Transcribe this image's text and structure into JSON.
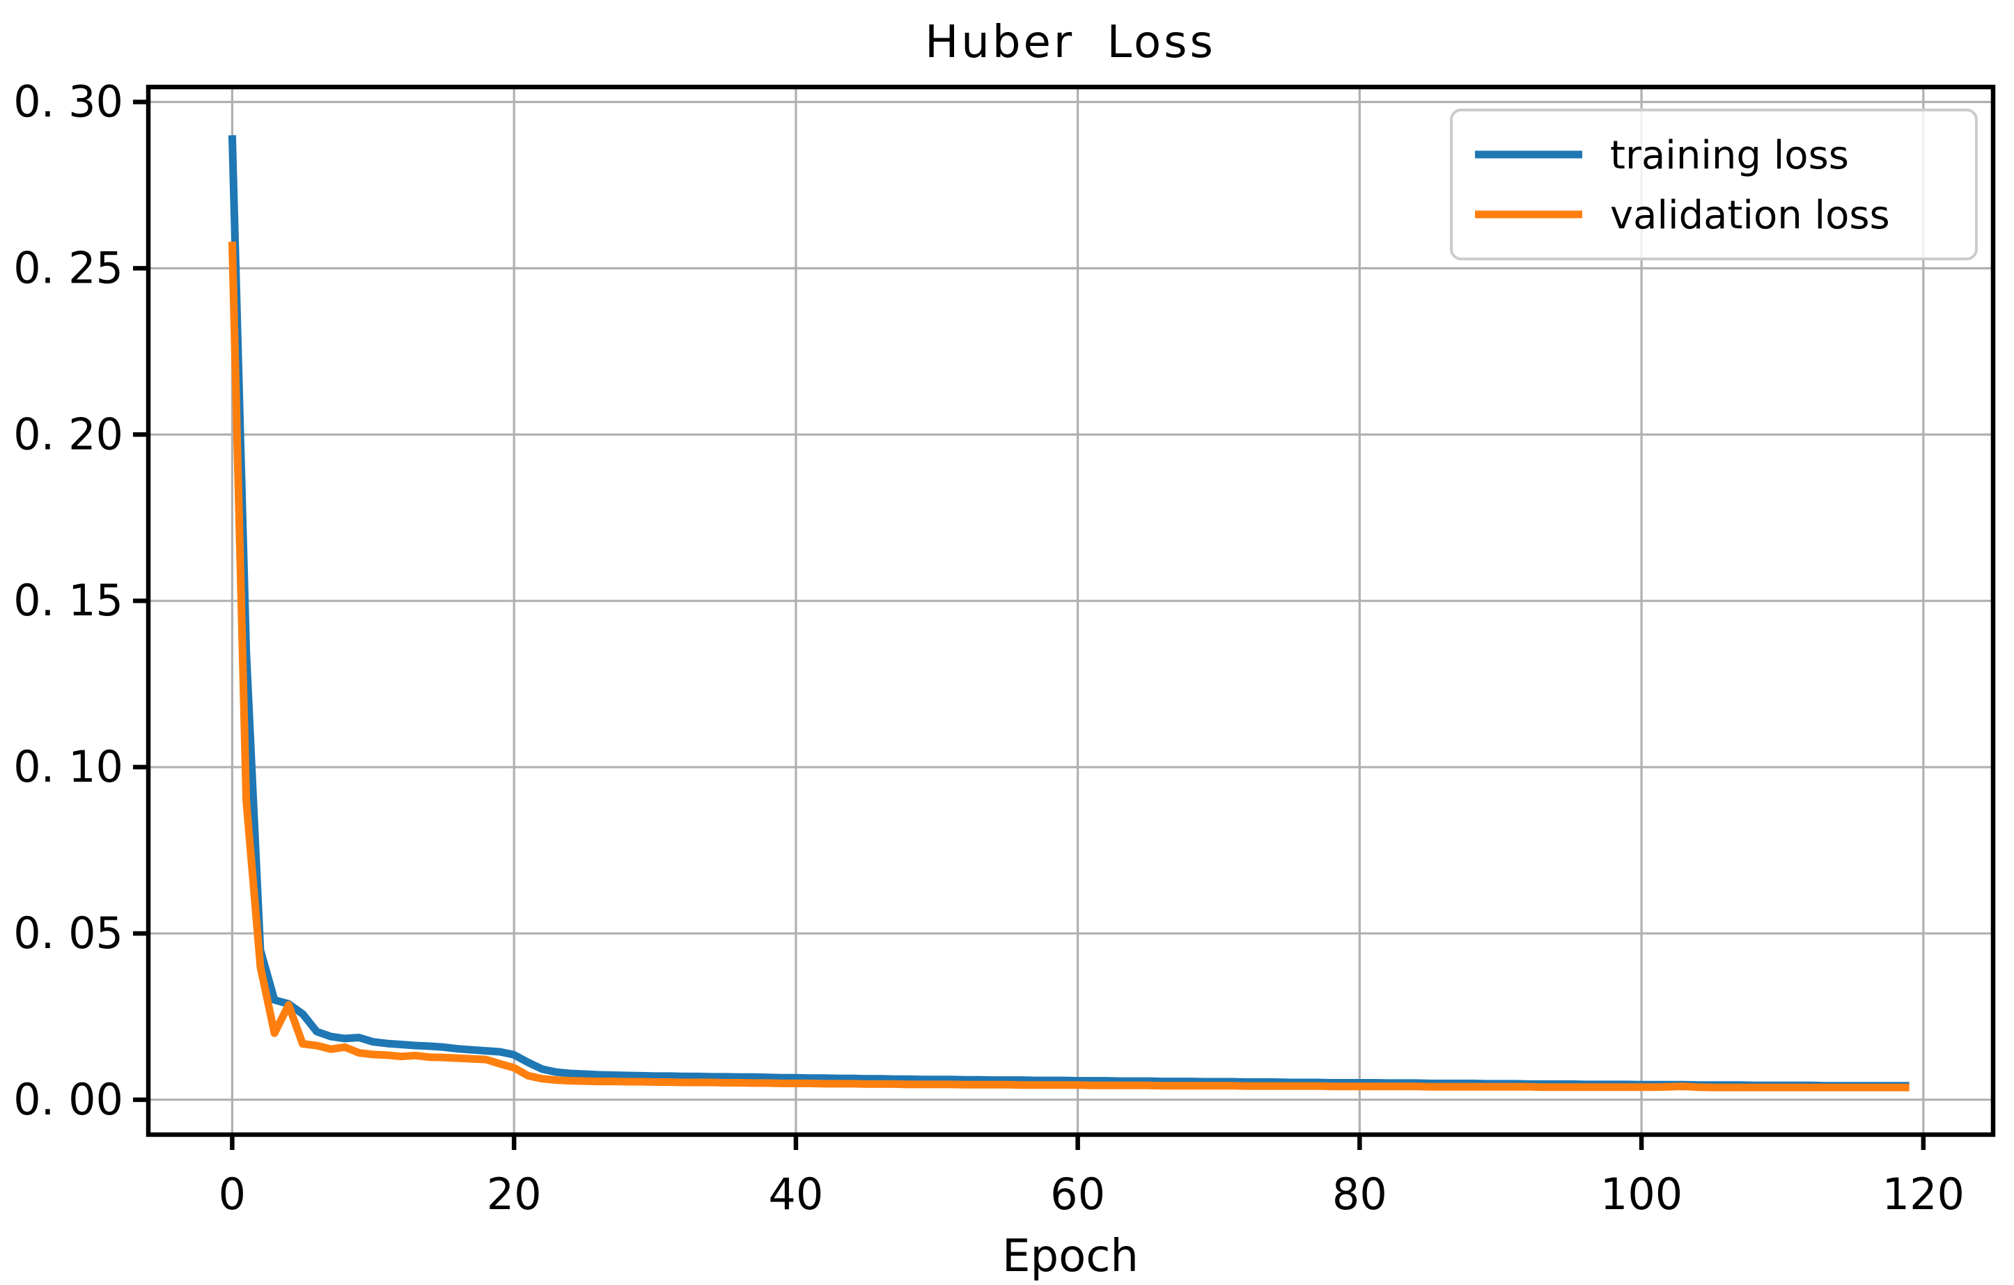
{
  "figure": {
    "title": "Huber Loss",
    "xlabel": "Epoch"
  },
  "colors": {
    "training": "#1f77b4",
    "validation": "#ff7f0e",
    "grid": "#b0b0b0",
    "spine": "#000000",
    "legend_border": "#cccccc",
    "background": "#ffffff"
  },
  "legend": {
    "entries": [
      {
        "label": "training loss",
        "color": "#1f77b4"
      },
      {
        "label": "validation loss",
        "color": "#ff7f0e"
      }
    ]
  },
  "axes": {
    "x_tick_labels": [
      "0",
      "20",
      "40",
      "60",
      "80",
      "100",
      "120"
    ],
    "y_tick_labels": [
      "0. 30",
      "0. 25",
      "0. 20",
      "0. 15",
      "0. 10",
      "0. 05",
      "0. 00"
    ]
  },
  "chart_data": {
    "type": "line",
    "title": "Huber Loss",
    "xlabel": "Epoch",
    "ylabel": "",
    "grid": true,
    "legend_position": "upper right",
    "xlim": [
      -5.95,
      124.95
    ],
    "ylim": [
      -0.0105,
      0.3045
    ],
    "x_ticks": [
      0,
      20,
      40,
      60,
      80,
      100,
      120
    ],
    "y_ticks": [
      0.3,
      0.25,
      0.2,
      0.15,
      0.1,
      0.05,
      0.0
    ],
    "x": [
      0,
      1,
      2,
      3,
      4,
      5,
      6,
      7,
      8,
      9,
      10,
      11,
      12,
      13,
      14,
      15,
      16,
      17,
      18,
      19,
      20,
      21,
      22,
      23,
      24,
      25,
      26,
      27,
      28,
      29,
      30,
      31,
      32,
      33,
      34,
      35,
      36,
      37,
      38,
      39,
      40,
      41,
      42,
      43,
      44,
      45,
      46,
      47,
      48,
      49,
      50,
      51,
      52,
      53,
      54,
      55,
      56,
      57,
      58,
      59,
      60,
      61,
      62,
      63,
      64,
      65,
      66,
      67,
      68,
      69,
      70,
      71,
      72,
      73,
      74,
      75,
      76,
      77,
      78,
      79,
      80,
      81,
      82,
      83,
      84,
      85,
      86,
      87,
      88,
      89,
      90,
      91,
      92,
      93,
      94,
      95,
      96,
      97,
      98,
      99,
      100,
      101,
      102,
      103,
      104,
      105,
      106,
      107,
      108,
      109,
      110,
      111,
      112,
      113,
      114,
      115,
      116,
      117,
      118,
      119
    ],
    "series": [
      {
        "name": "training loss",
        "color": "#1f77b4",
        "values": [
          0.29,
          0.135,
          0.045,
          0.03,
          0.0288,
          0.0258,
          0.0205,
          0.019,
          0.0184,
          0.0187,
          0.0174,
          0.0169,
          0.0166,
          0.0163,
          0.0161,
          0.0158,
          0.0153,
          0.015,
          0.0147,
          0.0144,
          0.0135,
          0.0112,
          0.0092,
          0.0083,
          0.0079,
          0.0077,
          0.0075,
          0.0074,
          0.0073,
          0.0072,
          0.0071,
          0.0071,
          0.007,
          0.007,
          0.0069,
          0.0069,
          0.0068,
          0.0068,
          0.0067,
          0.0066,
          0.0066,
          0.0065,
          0.0065,
          0.0064,
          0.0064,
          0.0063,
          0.0063,
          0.0062,
          0.0062,
          0.0061,
          0.0061,
          0.0061,
          0.006,
          0.006,
          0.0059,
          0.0059,
          0.0059,
          0.0058,
          0.0058,
          0.0058,
          0.0057,
          0.0057,
          0.0057,
          0.0056,
          0.0056,
          0.0056,
          0.0055,
          0.0055,
          0.0055,
          0.0054,
          0.0054,
          0.0054,
          0.0053,
          0.0053,
          0.0053,
          0.0052,
          0.0052,
          0.0052,
          0.0051,
          0.0051,
          0.0051,
          0.0051,
          0.005,
          0.005,
          0.005,
          0.0049,
          0.0049,
          0.0049,
          0.0049,
          0.0048,
          0.0048,
          0.0048,
          0.0047,
          0.0047,
          0.0047,
          0.0047,
          0.0046,
          0.0046,
          0.0046,
          0.0046,
          0.0045,
          0.0045,
          0.0045,
          0.0045,
          0.0044,
          0.0044,
          0.0044,
          0.0044,
          0.0043,
          0.0043,
          0.0043,
          0.0043,
          0.0043,
          0.0042,
          0.0042,
          0.0042,
          0.0042,
          0.0042,
          0.0042,
          0.0042
        ]
      },
      {
        "name": "validation loss",
        "color": "#ff7f0e",
        "values": [
          0.258,
          0.09,
          0.04,
          0.02,
          0.0285,
          0.0168,
          0.0163,
          0.0152,
          0.0158,
          0.0141,
          0.0136,
          0.0134,
          0.013,
          0.0133,
          0.0128,
          0.0127,
          0.0125,
          0.0123,
          0.0121,
          0.0108,
          0.0096,
          0.0072,
          0.0063,
          0.0059,
          0.0057,
          0.0056,
          0.0055,
          0.0055,
          0.0054,
          0.0054,
          0.0053,
          0.0053,
          0.0052,
          0.0052,
          0.0052,
          0.0051,
          0.0051,
          0.005,
          0.005,
          0.0049,
          0.0049,
          0.0049,
          0.0048,
          0.0048,
          0.0048,
          0.0047,
          0.0047,
          0.0047,
          0.0046,
          0.0046,
          0.0046,
          0.0046,
          0.0045,
          0.0045,
          0.0045,
          0.0045,
          0.0044,
          0.0044,
          0.0044,
          0.0044,
          0.0044,
          0.0043,
          0.0043,
          0.0043,
          0.0043,
          0.0043,
          0.0042,
          0.0042,
          0.0042,
          0.0042,
          0.0042,
          0.0042,
          0.0041,
          0.0041,
          0.0041,
          0.0041,
          0.0041,
          0.0041,
          0.004,
          0.004,
          0.004,
          0.004,
          0.004,
          0.004,
          0.004,
          0.0039,
          0.0039,
          0.0039,
          0.0039,
          0.0039,
          0.0039,
          0.0039,
          0.0039,
          0.0038,
          0.0038,
          0.0038,
          0.0038,
          0.0038,
          0.0038,
          0.0038,
          0.0038,
          0.0038,
          0.0039,
          0.004,
          0.0038,
          0.0037,
          0.0037,
          0.0037,
          0.0037,
          0.0037,
          0.0037,
          0.0037,
          0.0037,
          0.0037,
          0.0037,
          0.0037,
          0.0037,
          0.0037,
          0.0037,
          0.0037
        ]
      }
    ]
  }
}
